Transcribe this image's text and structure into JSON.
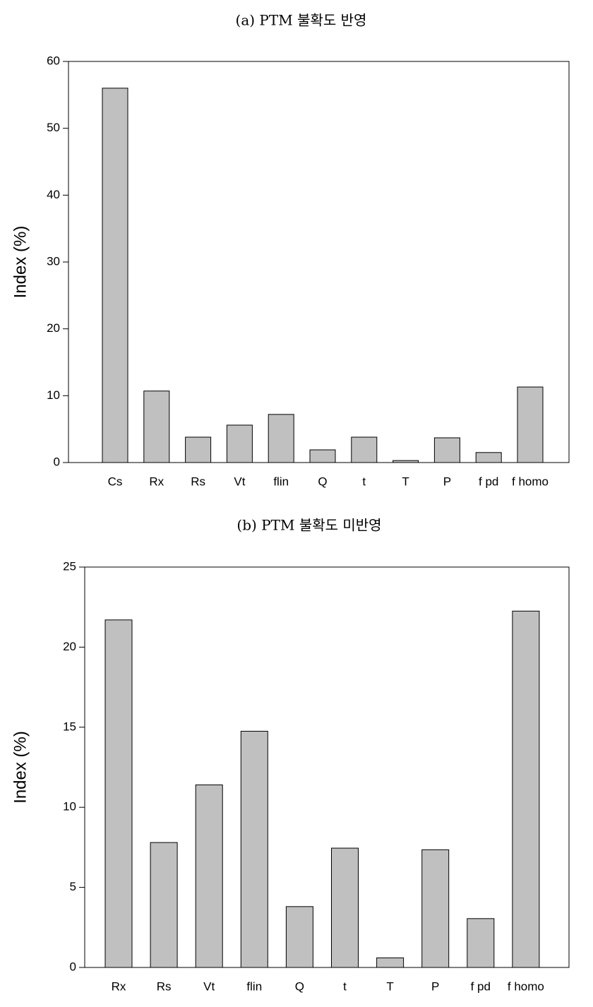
{
  "chart_data": [
    {
      "type": "bar",
      "title": "(a) PTM 불확도 반영",
      "y_label": "Index (%)",
      "categories": [
        "Cs",
        "Rx",
        "Rs",
        "Vt",
        "flin",
        "Q",
        "t",
        "T",
        "P",
        "f pd",
        "f homo"
      ],
      "values": [
        56,
        10.7,
        3.8,
        5.6,
        7.2,
        1.9,
        3.8,
        0.3,
        3.7,
        1.5,
        11.3
      ],
      "color": "#c0c0c0",
      "ylim": [
        0,
        60
      ],
      "yticks": [
        0,
        10,
        20,
        30,
        40,
        50,
        60
      ]
    },
    {
      "type": "bar",
      "title": "(b) PTM 불확도 미반영",
      "y_label": "Index (%)",
      "categories": [
        "Rx",
        "Rs",
        "Vt",
        "flin",
        "Q",
        "t",
        "T",
        "P",
        "f pd",
        "f homo"
      ],
      "values": [
        21.7,
        7.8,
        11.4,
        14.75,
        3.8,
        7.45,
        0.6,
        7.35,
        3.05,
        22.25
      ],
      "color": "#c0c0c0",
      "ylim": [
        0,
        25
      ],
      "yticks": [
        0,
        5,
        10,
        15,
        20,
        25
      ]
    }
  ]
}
